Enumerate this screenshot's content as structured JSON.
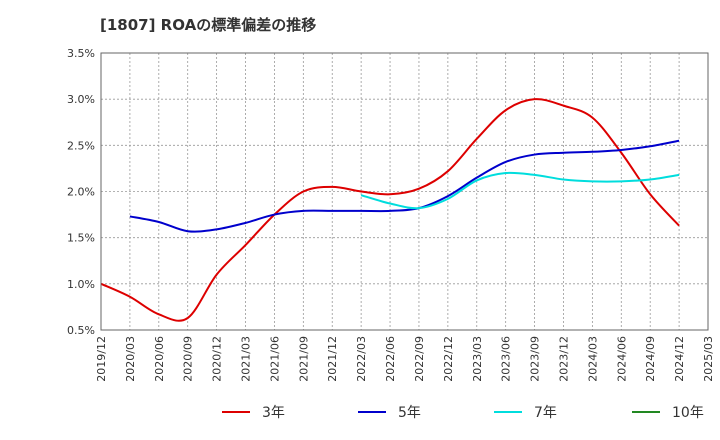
{
  "chart_data": {
    "type": "line",
    "title": "[1807]  ROAの標準偏差の推移",
    "xlabel": "",
    "ylabel": "",
    "x": [
      "2019/12",
      "2020/03",
      "2020/06",
      "2020/09",
      "2020/12",
      "2021/03",
      "2021/06",
      "2021/09",
      "2021/12",
      "2022/03",
      "2022/06",
      "2022/09",
      "2022/12",
      "2023/03",
      "2023/06",
      "2023/09",
      "2023/12",
      "2024/03",
      "2024/06",
      "2024/09",
      "2024/12",
      "2025/03"
    ],
    "y_ticks": [
      "0.5%",
      "1.0%",
      "1.5%",
      "2.0%",
      "2.5%",
      "3.0%",
      "3.5%"
    ],
    "ylim": [
      0.5,
      3.5
    ],
    "grid": true,
    "legend_position": "bottom",
    "series": [
      {
        "name": "3年",
        "color": "#dd0000",
        "values": [
          1.0,
          0.86,
          0.67,
          0.63,
          1.1,
          1.42,
          1.75,
          2.0,
          2.05,
          2.0,
          1.97,
          2.03,
          2.22,
          2.57,
          2.88,
          3.0,
          2.93,
          2.8,
          2.42,
          1.97,
          1.63,
          null
        ]
      },
      {
        "name": "5年",
        "color": "#0000cc",
        "values": [
          null,
          1.73,
          1.67,
          1.57,
          1.59,
          1.66,
          1.75,
          1.79,
          1.79,
          1.79,
          1.79,
          1.82,
          1.95,
          2.15,
          2.32,
          2.4,
          2.42,
          2.43,
          2.45,
          2.49,
          2.55,
          null
        ]
      },
      {
        "name": "7年",
        "color": "#00dddd",
        "values": [
          null,
          null,
          null,
          null,
          null,
          null,
          null,
          null,
          null,
          1.96,
          1.87,
          1.82,
          1.92,
          2.12,
          2.2,
          2.18,
          2.13,
          2.11,
          2.11,
          2.13,
          2.18,
          null
        ]
      },
      {
        "name": "10年",
        "color": "#228822",
        "values": [
          null,
          null,
          null,
          null,
          null,
          null,
          null,
          null,
          null,
          null,
          null,
          null,
          null,
          null,
          null,
          null,
          null,
          null,
          null,
          null,
          null,
          null
        ]
      }
    ]
  }
}
